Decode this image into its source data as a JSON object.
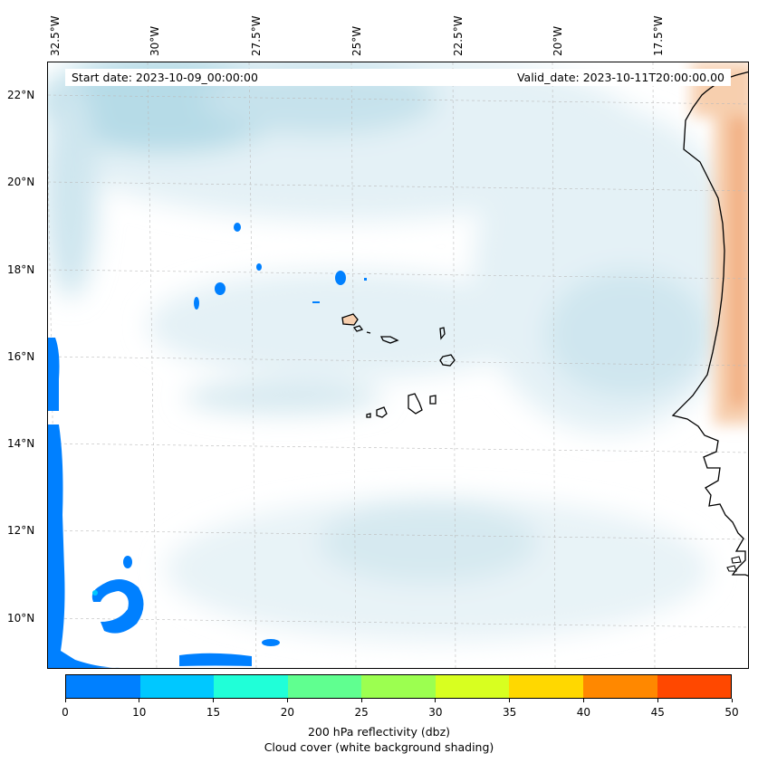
{
  "info": {
    "start_date": "Start date: 2023-10-09_00:00:00",
    "valid_date": "Valid_date: 2023-10-11T20:00:00.00"
  },
  "axes": {
    "longitude_labels": [
      "32.5°W",
      "30°W",
      "27.5°W",
      "25°W",
      "22.5°W",
      "20°W",
      "17.5°W"
    ],
    "latitude_labels": [
      "22°N",
      "20°N",
      "18°N",
      "16°N",
      "14°N",
      "12°N",
      "10°N"
    ]
  },
  "colorbar": {
    "ticks": [
      "0",
      "10",
      "15",
      "20",
      "25",
      "30",
      "35",
      "40",
      "45",
      "50"
    ],
    "colors": [
      "#0080ff",
      "#00c8ff",
      "#20ffd8",
      "#60ff90",
      "#9cff50",
      "#d8ff20",
      "#ffd800",
      "#ff8800",
      "#ff4800"
    ],
    "label_line1": "200 hPa reflectivity (dbz)",
    "label_line2": "Cloud cover (white background shading)"
  },
  "map_colors": {
    "cloud_light": "#e4f1f6",
    "cloud_mid": "#cfe6ef",
    "cloud_dark": "#b6dbe7",
    "land_warm": "#f7cfae",
    "land_warm_dark": "#f2b083",
    "reflectivity_low": "#0080ff",
    "coast": "#000000"
  }
}
